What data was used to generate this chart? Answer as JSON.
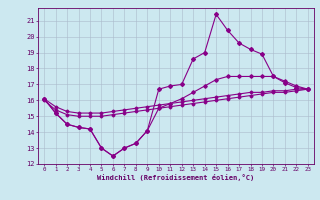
{
  "xlabel": "Windchill (Refroidissement éolien,°C)",
  "background_color": "#cce8f0",
  "grid_color": "#aabbcc",
  "line_color": "#880088",
  "xlim": [
    -0.5,
    23.5
  ],
  "ylim": [
    12,
    21.8
  ],
  "yticks": [
    12,
    13,
    14,
    15,
    16,
    17,
    18,
    19,
    20,
    21
  ],
  "xticks": [
    0,
    1,
    2,
    3,
    4,
    5,
    6,
    7,
    8,
    9,
    10,
    11,
    12,
    13,
    14,
    15,
    16,
    17,
    18,
    19,
    20,
    21,
    22,
    23
  ],
  "series_zigzag": {
    "x": [
      0,
      1,
      2,
      3,
      4,
      5,
      6,
      7,
      8,
      9,
      10,
      11,
      12,
      13,
      14,
      15,
      16,
      17,
      18,
      19,
      20,
      21,
      22,
      23
    ],
    "y": [
      16.1,
      15.2,
      14.5,
      14.3,
      14.2,
      13.0,
      12.5,
      13.0,
      13.3,
      14.1,
      16.7,
      16.9,
      17.0,
      18.6,
      19.0,
      21.4,
      20.4,
      19.6,
      19.2,
      18.9,
      17.5,
      17.1,
      16.8,
      16.7
    ]
  },
  "series_smooth": {
    "x": [
      0,
      1,
      2,
      3,
      4,
      5,
      6,
      7,
      8,
      9,
      10,
      11,
      12,
      13,
      14,
      15,
      16,
      17,
      18,
      19,
      20,
      21,
      22,
      23
    ],
    "y": [
      16.1,
      15.2,
      14.5,
      14.3,
      14.2,
      13.0,
      12.5,
      13.0,
      13.3,
      14.1,
      15.5,
      15.8,
      16.1,
      16.5,
      16.9,
      17.3,
      17.5,
      17.5,
      17.5,
      17.5,
      17.5,
      17.2,
      16.9,
      16.7
    ]
  },
  "series_line1": {
    "x": [
      0,
      1,
      2,
      3,
      4,
      5,
      6,
      7,
      8,
      9,
      10,
      11,
      12,
      13,
      14,
      15,
      16,
      17,
      18,
      19,
      20,
      21,
      22,
      23
    ],
    "y": [
      16.0,
      15.4,
      15.1,
      15.0,
      15.0,
      15.0,
      15.1,
      15.2,
      15.3,
      15.4,
      15.5,
      15.6,
      15.7,
      15.8,
      15.9,
      16.0,
      16.1,
      16.2,
      16.3,
      16.4,
      16.5,
      16.5,
      16.6,
      16.7
    ]
  },
  "series_line2": {
    "x": [
      0,
      1,
      2,
      3,
      4,
      5,
      6,
      7,
      8,
      9,
      10,
      11,
      12,
      13,
      14,
      15,
      16,
      17,
      18,
      19,
      20,
      21,
      22,
      23
    ],
    "y": [
      16.1,
      15.6,
      15.3,
      15.2,
      15.2,
      15.2,
      15.3,
      15.4,
      15.5,
      15.6,
      15.7,
      15.8,
      15.9,
      16.0,
      16.1,
      16.2,
      16.3,
      16.4,
      16.5,
      16.5,
      16.6,
      16.6,
      16.7,
      16.7
    ]
  }
}
